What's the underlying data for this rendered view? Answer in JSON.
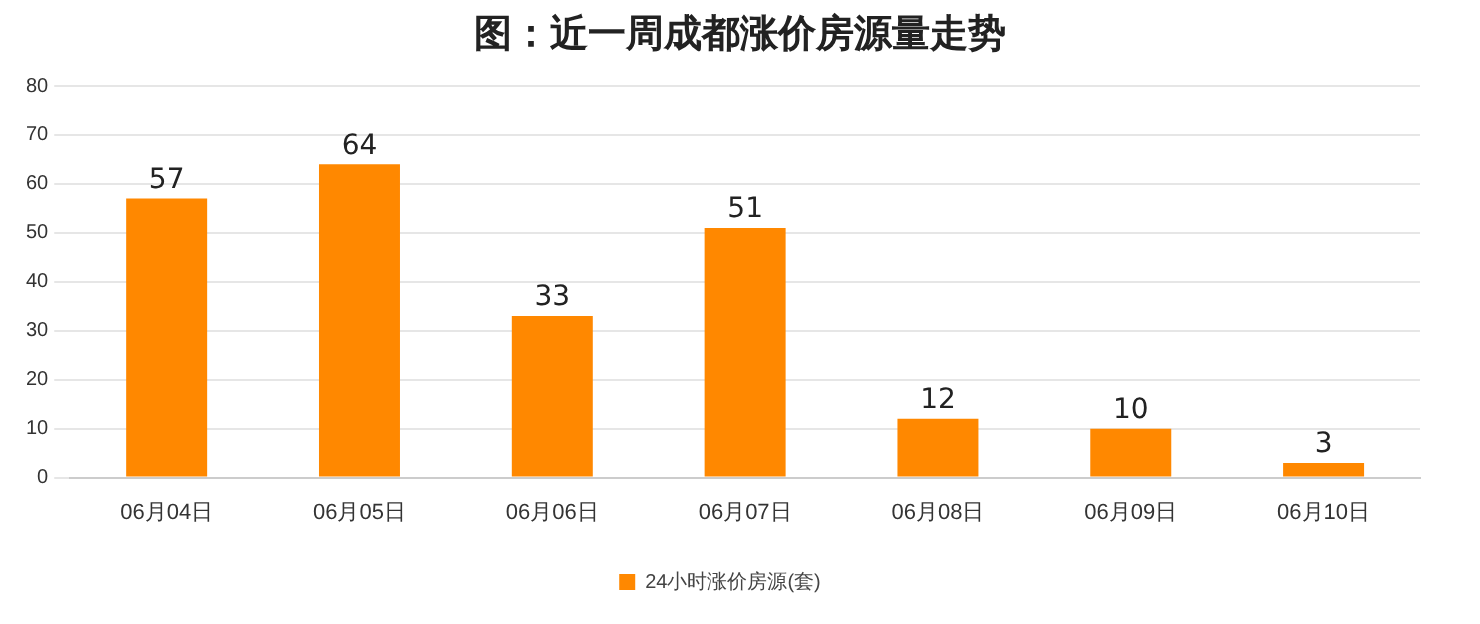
{
  "chart_data": {
    "type": "bar",
    "title": "图：近一周成都涨价房源量走势",
    "categories": [
      "06月04日",
      "06月05日",
      "06月06日",
      "06月07日",
      "06月08日",
      "06月09日",
      "06月10日"
    ],
    "series": [
      {
        "name": "24小时涨价房源(套)",
        "color": "#ff8800",
        "values": [
          57,
          64,
          33,
          51,
          12,
          10,
          3
        ]
      }
    ],
    "ylim": [
      0,
      80
    ],
    "yticks": [
      0,
      10,
      20,
      30,
      40,
      50,
      60,
      70,
      80
    ],
    "grid": "y",
    "legend": "bottom",
    "data_labels": true
  }
}
